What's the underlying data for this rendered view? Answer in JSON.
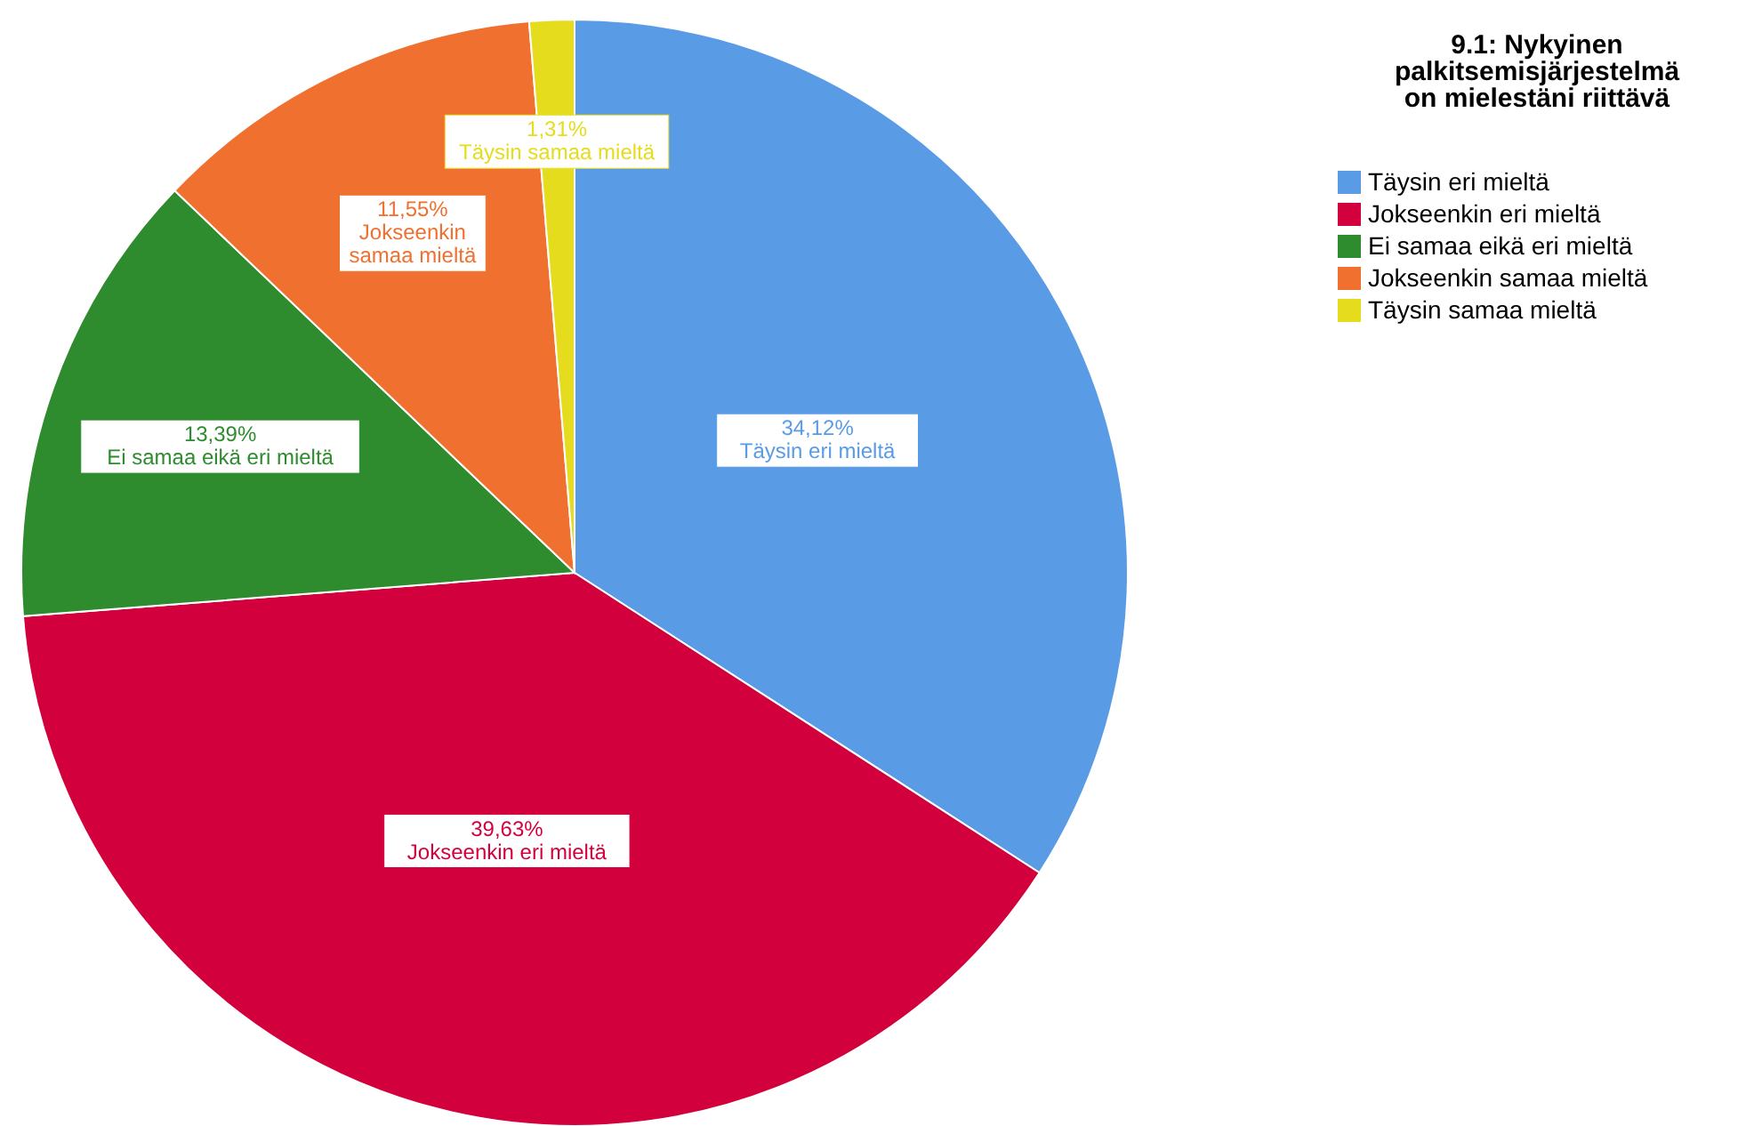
{
  "chart_data": {
    "type": "pie",
    "legend_title": "9.1: Nykyinen palkitsemisjärjestelmä on mielestäni riittävä",
    "categories": [
      "Täysin eri mieltä",
      "Jokseenkin eri mieltä",
      "Ei samaa eikä eri mieltä",
      "Jokseenkin samaa mieltä",
      "Täysin samaa mieltä"
    ],
    "values": [
      34.12,
      39.63,
      13.39,
      11.55,
      1.31
    ],
    "colors": [
      "#5a9be6",
      "#d2003c",
      "#2e8b2e",
      "#f07030",
      "#e6dc1e"
    ],
    "value_labels": [
      "34,12%",
      "39,63%",
      "13,39%",
      "11,55%",
      "1,31%"
    ],
    "legend": "top right"
  }
}
